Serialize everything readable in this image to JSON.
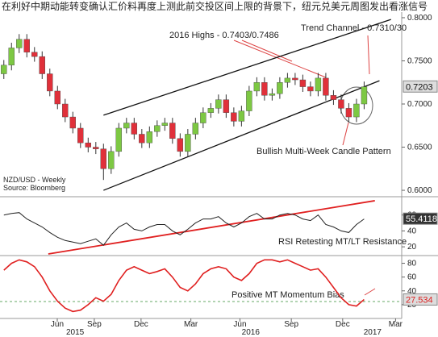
{
  "header": "在利好中期动能转变确认汇价料再度上测此前交投区间上限的背景下，纽元兑美元周图发出看涨信号",
  "chart_data": [
    {
      "type": "candlestick",
      "annotations": [
        "2016 Highs - 0.7403/0.7486",
        "Trend Channel - 0.7310/30",
        "Bullish Multi-Week Candle Pattern",
        "NZD/USD - Weekly",
        "Source: Bloomberg"
      ],
      "xlim": [
        -0.5,
        51.9
      ],
      "ylim": [
        0.5935,
        0.8065
      ],
      "yticks": [
        {
          "value": 0.6,
          "label": "0.6000"
        },
        {
          "value": 0.65,
          "label": "0.6500"
        },
        {
          "value": 0.7,
          "label": "0.7000"
        },
        {
          "value": 0.75,
          "label": "0.7500"
        },
        {
          "value": 0.8,
          "label": "0.8000"
        }
      ],
      "up_color": "#7dc843",
      "down_color": "#e0303a",
      "open": [
        0.735,
        0.745,
        0.765,
        0.775,
        0.76,
        0.755,
        0.735,
        0.715,
        0.7,
        0.685,
        0.672,
        0.655,
        0.65,
        0.648,
        0.625,
        0.645,
        0.672,
        0.678,
        0.665,
        0.655,
        0.668,
        0.675,
        0.678,
        0.66,
        0.645,
        0.665,
        0.678,
        0.69,
        0.695,
        0.705,
        0.69,
        0.68,
        0.692,
        0.715,
        0.725,
        0.71,
        0.712,
        0.725,
        0.73,
        0.728,
        0.72,
        0.715,
        0.73,
        0.71,
        0.705,
        0.695,
        0.685,
        0.7
      ],
      "high": [
        0.751,
        0.771,
        0.781,
        0.781,
        0.766,
        0.761,
        0.741,
        0.721,
        0.706,
        0.691,
        0.678,
        0.661,
        0.656,
        0.654,
        0.651,
        0.678,
        0.684,
        0.684,
        0.671,
        0.674,
        0.681,
        0.684,
        0.684,
        0.666,
        0.671,
        0.684,
        0.696,
        0.701,
        0.711,
        0.711,
        0.696,
        0.698,
        0.721,
        0.731,
        0.731,
        0.718,
        0.731,
        0.736,
        0.736,
        0.734,
        0.726,
        0.736,
        0.736,
        0.716,
        0.711,
        0.701,
        0.706,
        0.726
      ],
      "low": [
        0.729,
        0.739,
        0.759,
        0.754,
        0.749,
        0.729,
        0.709,
        0.694,
        0.679,
        0.666,
        0.649,
        0.644,
        0.642,
        0.612,
        0.619,
        0.639,
        0.666,
        0.659,
        0.649,
        0.649,
        0.662,
        0.669,
        0.654,
        0.639,
        0.639,
        0.659,
        0.672,
        0.684,
        0.689,
        0.684,
        0.674,
        0.674,
        0.686,
        0.709,
        0.704,
        0.704,
        0.706,
        0.719,
        0.722,
        0.714,
        0.709,
        0.709,
        0.704,
        0.699,
        0.689,
        0.679,
        0.679,
        0.694
      ],
      "close": [
        0.745,
        0.765,
        0.775,
        0.76,
        0.755,
        0.735,
        0.715,
        0.7,
        0.685,
        0.672,
        0.655,
        0.65,
        0.648,
        0.625,
        0.645,
        0.672,
        0.678,
        0.665,
        0.655,
        0.668,
        0.675,
        0.678,
        0.66,
        0.645,
        0.665,
        0.678,
        0.69,
        0.695,
        0.705,
        0.69,
        0.68,
        0.692,
        0.715,
        0.725,
        0.71,
        0.712,
        0.725,
        0.73,
        0.728,
        0.72,
        0.715,
        0.73,
        0.71,
        0.705,
        0.695,
        0.685,
        0.7,
        0.72
      ],
      "last_value": 0.7203,
      "trendlines": [
        {
          "color": "#111111",
          "x": [
            13,
            50.5
          ],
          "y": [
            0.687,
            0.798
          ]
        },
        {
          "color": "#111111",
          "x": [
            13,
            49
          ],
          "y": [
            0.6,
            0.727
          ]
        }
      ]
    },
    {
      "type": "line",
      "annotations": [
        "RSI Retesting MT/LT Resistance"
      ],
      "xlim": [
        -0.5,
        51.9
      ],
      "ylim": [
        10,
        82
      ],
      "yticks": [
        20,
        40,
        60
      ],
      "color": "#222222",
      "values": [
        60,
        62,
        63,
        55,
        50,
        45,
        38,
        32,
        28,
        26,
        24,
        27,
        30,
        22,
        35,
        45,
        50,
        42,
        40,
        45,
        48,
        48,
        40,
        35,
        42,
        50,
        55,
        55,
        58,
        50,
        45,
        50,
        58,
        62,
        55,
        55,
        60,
        62,
        60,
        55,
        53,
        60,
        48,
        45,
        40,
        38,
        48,
        55
      ],
      "last_value": 55.4118,
      "trendlines": [
        {
          "color": "#e02020",
          "x": [
            5.8,
            48.4
          ],
          "y": [
            11,
            78
          ]
        }
      ]
    },
    {
      "type": "line",
      "annotations": [
        "Positive MT Momentum Bias"
      ],
      "xlim": [
        -0.5,
        51.9
      ],
      "ylim": [
        0,
        90
      ],
      "yticks": [
        20,
        40,
        60,
        80
      ],
      "color": "#e02020",
      "values": [
        70,
        80,
        85,
        82,
        75,
        60,
        40,
        25,
        15,
        10,
        12,
        20,
        30,
        25,
        35,
        55,
        70,
        75,
        70,
        65,
        68,
        72,
        60,
        45,
        40,
        50,
        65,
        72,
        75,
        72,
        60,
        55,
        65,
        80,
        85,
        85,
        82,
        85,
        80,
        75,
        70,
        72,
        60,
        45,
        30,
        20,
        18,
        27.5
      ],
      "last_value": 27.534,
      "xticks": [
        {
          "value": 6.97,
          "label": "Jun"
        },
        {
          "value": 11.8,
          "label": "Sep"
        },
        {
          "value": 17.9,
          "label": "Dec"
        },
        {
          "value": 24.4,
          "label": "Mar"
        },
        {
          "value": 30.8,
          "label": "Jun"
        },
        {
          "value": 37.5,
          "label": "Sep"
        },
        {
          "value": 44.2,
          "label": "Dec"
        },
        {
          "value": 51.1,
          "label": "Mar"
        }
      ],
      "year_labels": [
        {
          "value": 9.3,
          "label": "2015"
        },
        {
          "value": 32.2,
          "label": "2016"
        },
        {
          "value": 48.1,
          "label": "2017"
        }
      ]
    }
  ]
}
